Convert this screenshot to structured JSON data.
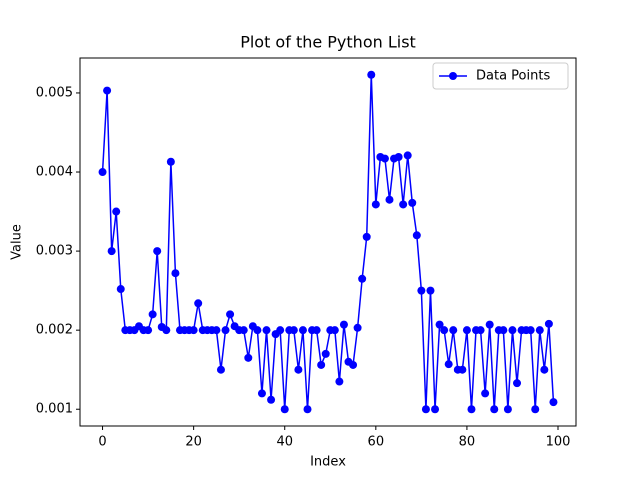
{
  "chart_data": {
    "type": "line",
    "title": "Plot of the Python List",
    "x_label": "Index",
    "y_label": "Value",
    "x": [
      0,
      1,
      2,
      3,
      4,
      5,
      6,
      7,
      8,
      9,
      10,
      11,
      12,
      13,
      14,
      15,
      16,
      17,
      18,
      19,
      20,
      21,
      22,
      23,
      24,
      25,
      26,
      27,
      28,
      29,
      30,
      31,
      32,
      33,
      34,
      35,
      36,
      37,
      38,
      39,
      40,
      41,
      42,
      43,
      44,
      45,
      46,
      47,
      48,
      49,
      50,
      51,
      52,
      53,
      54,
      55,
      56,
      57,
      58,
      59,
      60,
      61,
      62,
      63,
      64,
      65,
      66,
      67,
      68,
      69,
      70,
      71,
      72,
      73,
      74,
      75,
      76,
      77,
      78,
      79,
      80,
      81,
      82,
      83,
      84,
      85,
      86,
      87,
      88,
      89,
      90,
      91,
      92,
      93,
      94,
      95,
      96,
      97,
      98,
      99
    ],
    "series": [
      {
        "name": "Data Points",
        "color": "#0000ff",
        "marker": "circle",
        "values": [
          0.004,
          0.00503,
          0.003,
          0.0035,
          0.00252,
          0.002,
          0.002,
          0.002,
          0.00205,
          0.002,
          0.002,
          0.0022,
          0.003,
          0.00204,
          0.002,
          0.00413,
          0.00272,
          0.002,
          0.002,
          0.002,
          0.002,
          0.00234,
          0.002,
          0.002,
          0.002,
          0.002,
          0.0015,
          0.002,
          0.0022,
          0.00205,
          0.002,
          0.002,
          0.00165,
          0.00205,
          0.002,
          0.0012,
          0.002,
          0.00112,
          0.00195,
          0.002,
          0.001,
          0.002,
          0.002,
          0.0015,
          0.002,
          0.001,
          0.002,
          0.002,
          0.00156,
          0.0017,
          0.002,
          0.002,
          0.00135,
          0.00207,
          0.0016,
          0.00156,
          0.00203,
          0.00265,
          0.00318,
          0.00523,
          0.00359,
          0.00419,
          0.00417,
          0.00365,
          0.00417,
          0.00419,
          0.00359,
          0.00421,
          0.00361,
          0.0032,
          0.0025,
          0.001,
          0.0025,
          0.001,
          0.00207,
          0.002,
          0.00157,
          0.002,
          0.0015,
          0.0015,
          0.002,
          0.001,
          0.002,
          0.002,
          0.0012,
          0.00207,
          0.001,
          0.002,
          0.002,
          0.001,
          0.002,
          0.00133,
          0.002,
          0.002,
          0.002,
          0.001,
          0.002,
          0.0015,
          0.00208,
          0.00109
        ]
      }
    ],
    "xlim": [
      -4.95,
      103.95
    ],
    "xticks": [
      0,
      20,
      40,
      60,
      80,
      100
    ],
    "ylim": [
      0.000788,
      0.005442
    ],
    "yticks": [
      0.001,
      0.002,
      0.003,
      0.004,
      0.005
    ],
    "grid": false,
    "legend": "upper right"
  }
}
